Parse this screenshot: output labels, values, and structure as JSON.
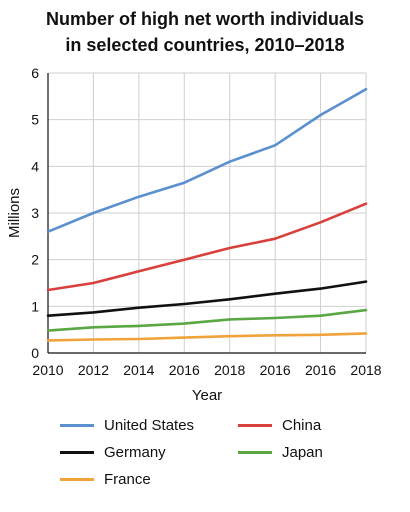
{
  "chart_data": {
    "type": "line",
    "title_line1": "Number of high net worth individuals",
    "title_line2": "in selected countries, 2010–2018",
    "xlabel": "Year",
    "ylabel": "Millions",
    "categories": [
      "2010",
      "2012",
      "2014",
      "2016",
      "2018",
      "2016",
      "2016",
      "2018"
    ],
    "ylim": [
      0,
      6
    ],
    "yticks": [
      "0",
      "1",
      "2",
      "3",
      "4",
      "5",
      "6"
    ],
    "grid": true,
    "legend_position": "bottom",
    "series": [
      {
        "name": "United States",
        "color": "#5a8fd0",
        "values": [
          2.6,
          3.0,
          3.35,
          3.65,
          4.1,
          4.45,
          5.1,
          5.65
        ]
      },
      {
        "name": "China",
        "color": "#d9403c",
        "values": [
          1.35,
          1.5,
          1.75,
          2.0,
          2.25,
          2.45,
          2.8,
          3.2
        ]
      },
      {
        "name": "Germany",
        "color": "#111111",
        "values": [
          0.8,
          0.87,
          0.97,
          1.05,
          1.15,
          1.27,
          1.38,
          1.53
        ]
      },
      {
        "name": "Japan",
        "color": "#5aa845",
        "values": [
          0.48,
          0.55,
          0.58,
          0.63,
          0.72,
          0.75,
          0.8,
          0.92
        ]
      },
      {
        "name": "France",
        "color": "#f0a33a",
        "values": [
          0.27,
          0.29,
          0.3,
          0.33,
          0.36,
          0.38,
          0.39,
          0.42
        ]
      }
    ]
  }
}
